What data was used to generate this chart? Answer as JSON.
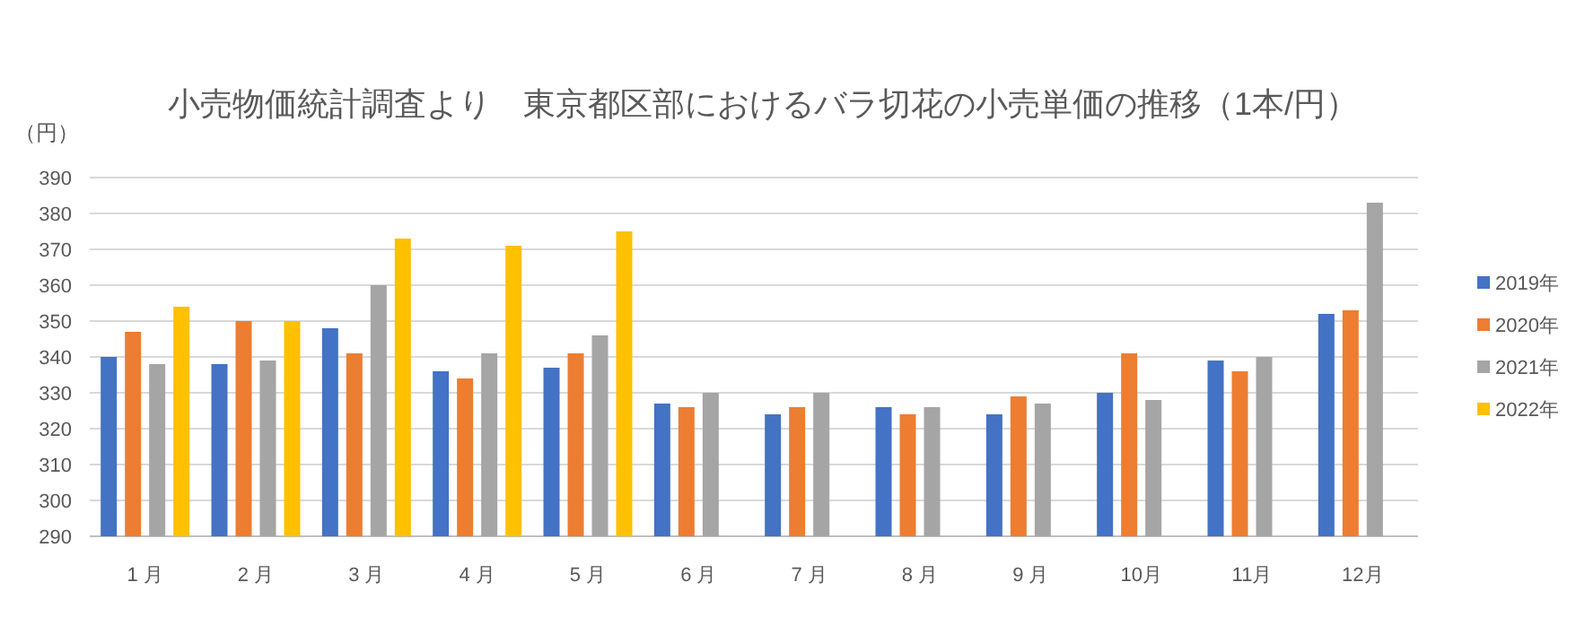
{
  "chart_data": {
    "type": "bar",
    "title": "小売物価統計調査より　東京都区部におけるバラ切花の小売単価の推移（1本/円）",
    "ylabel": "（円）",
    "categories": [
      "1 月",
      "2 月",
      "3 月",
      "4 月",
      "5 月",
      "6 月",
      "7 月",
      "8 月",
      "9 月",
      "10月",
      "11月",
      "12月"
    ],
    "series": [
      {
        "name": "2019年",
        "color": "#4472c4",
        "values": [
          340,
          338,
          348,
          336,
          337,
          327,
          324,
          326,
          324,
          330,
          339,
          352
        ]
      },
      {
        "name": "2020年",
        "color": "#ed7d31",
        "values": [
          347,
          350,
          341,
          334,
          341,
          326,
          326,
          324,
          329,
          341,
          336,
          353
        ]
      },
      {
        "name": "2021年",
        "color": "#a5a5a5",
        "values": [
          338,
          339,
          360,
          341,
          346,
          330,
          330,
          326,
          327,
          328,
          340,
          383
        ]
      },
      {
        "name": "2022年",
        "color": "#ffc000",
        "values": [
          354,
          350,
          373,
          371,
          375,
          null,
          null,
          null,
          null,
          null,
          null,
          null
        ]
      }
    ],
    "ylim": [
      290,
      390
    ],
    "yticks": [
      290,
      300,
      310,
      320,
      330,
      340,
      350,
      360,
      370,
      380,
      390
    ],
    "grid": "y",
    "legend": "right"
  }
}
